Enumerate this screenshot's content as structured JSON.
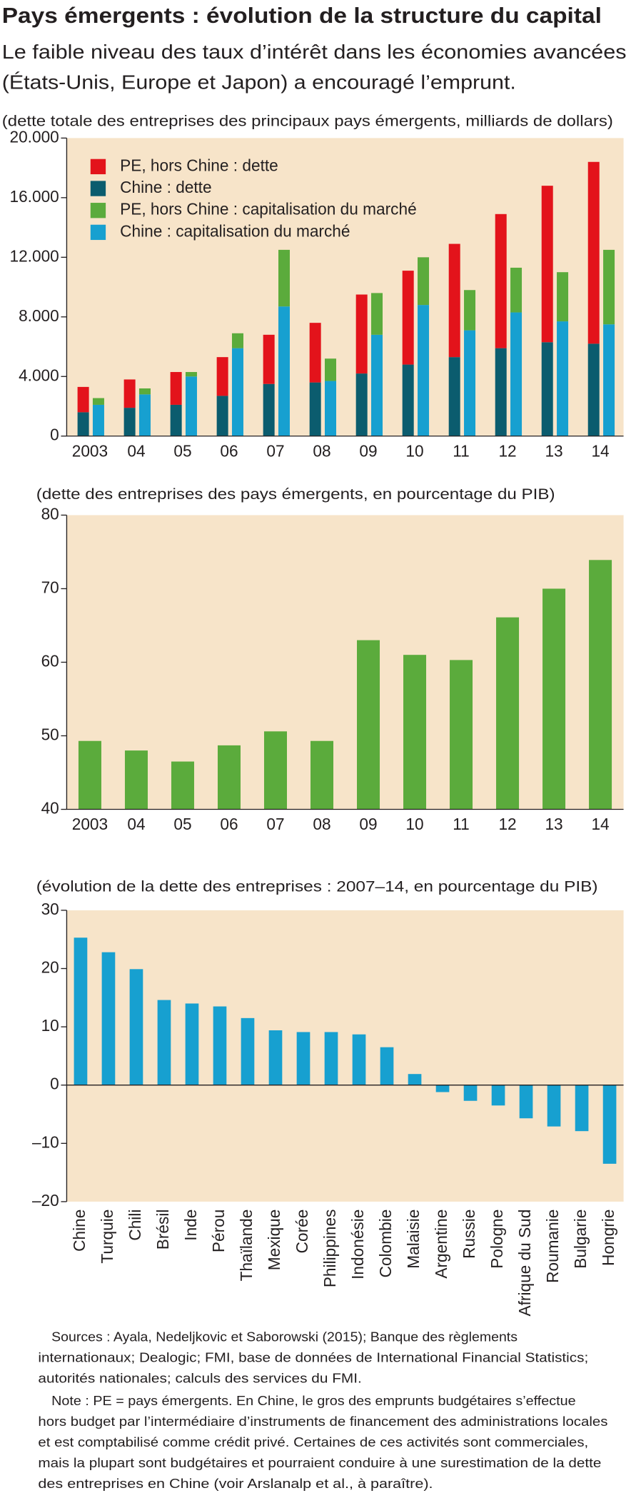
{
  "header": {
    "title": "Pays émergents : évolution de la structure du capital",
    "subtitle": [
      "Le faible niveau des taux d’intérêt dans les économies avancées",
      "(États-Unis, Europe et Japon) a encouragé l’emprunt."
    ]
  },
  "chart_data": [
    {
      "type": "bar",
      "subtitle": "(dette totale des entreprises des principaux pays émergents, milliards de dollars)",
      "categories": [
        "2003",
        "04",
        "05",
        "06",
        "07",
        "08",
        "09",
        "10",
        "11",
        "12",
        "13",
        "14"
      ],
      "series": [
        {
          "name": "PE, hors Chine : dette",
          "color": "#e3131b",
          "values": [
            1700,
            1900,
            2200,
            2600,
            3300,
            4000,
            5300,
            6300,
            7600,
            9000,
            10500,
            12200
          ]
        },
        {
          "name": "Chine : dette",
          "color": "#0b5c6e",
          "values": [
            1600,
            1900,
            2100,
            2700,
            3500,
            3600,
            4200,
            4800,
            5300,
            5900,
            6300,
            6200
          ]
        },
        {
          "name": "PE, hors Chine : capitalisation du marché",
          "color": "#5bab3c",
          "values": [
            450,
            400,
            300,
            1000,
            3800,
            1500,
            2800,
            3200,
            2700,
            3000,
            3300,
            5000
          ]
        },
        {
          "name": "Chine : capitalisation du marché",
          "color": "#17a0d0",
          "values": [
            2100,
            2800,
            4000,
            5900,
            8700,
            3700,
            6800,
            8800,
            7100,
            8300,
            7700,
            7500
          ]
        }
      ],
      "ylim": [
        0,
        20000
      ],
      "yticks": [
        0,
        {
          "value": 4000,
          "label": "4.000"
        },
        {
          "value": 8000,
          "label": "8.000"
        },
        {
          "value": 12000,
          "label": "12.000"
        },
        {
          "value": 16000,
          "label": "16.000"
        },
        {
          "value": 20000,
          "label": "20.000"
        }
      ],
      "legend": "top-left"
    },
    {
      "type": "bar",
      "subtitle": "(dette des entreprises des pays émergents, en pourcentage du PIB)",
      "categories": [
        "2003",
        "04",
        "05",
        "06",
        "07",
        "08",
        "09",
        "10",
        "11",
        "12",
        "13",
        "14"
      ],
      "values": [
        49.3,
        48,
        46.5,
        48.7,
        50.6,
        49.3,
        63,
        61,
        60.3,
        66.1,
        70,
        73.9
      ],
      "color": "#5bab3c",
      "ylim": [
        40,
        80
      ],
      "yticks": [
        40,
        50,
        60,
        70,
        80
      ]
    },
    {
      "type": "bar",
      "subtitle": "(évolution de la dette des entreprises : 2007–14, en pourcentage du PIB)",
      "categories": [
        "Chine",
        "Turquie",
        "Chili",
        "Brésil",
        "Inde",
        "Pérou",
        "Thaïlande",
        "Mexique",
        "Corée",
        "Philippines",
        "Indonésie",
        "Colombie",
        "Malaisie",
        "Argentine",
        "Russie",
        "Pologne",
        "Afrique du Sud",
        "Roumanie",
        "Bulgarie",
        "Hongrie"
      ],
      "values": [
        25.3,
        22.8,
        19.9,
        14.6,
        14,
        13.5,
        11.5,
        9.4,
        9.1,
        9.1,
        8.7,
        6.5,
        1.9,
        -1.2,
        -2.7,
        -3.5,
        -5.7,
        -7.1,
        -7.9,
        -13.5
      ],
      "color": "#17a0d0",
      "ylim": [
        -20,
        30
      ],
      "yticks": [
        {
          "value": -20,
          "label": "–20"
        },
        {
          "value": -10,
          "label": "–10"
        },
        0,
        10,
        20,
        30
      ]
    }
  ],
  "footer": {
    "sources": [
      "Sources : Ayala, Nedeljkovic et Saborowski (2015); Banque des règlements",
      "internationaux; Dealogic; FMI, base de données de International Financial Statistics;",
      "autorités nationales; calculs des services du FMI."
    ],
    "note": [
      "Note : PE = pays émergents. En Chine, le gros des emprunts budgétaires s’effectue",
      "hors budget par l’intermédiaire d’instruments de financement des administrations locales",
      "et est comptabilisé comme crédit privé. Certaines de ces activités sont commerciales,",
      "mais la plupart sont budgétaires et pourraient conduire à une surestimation de la dette",
      "des entreprises en Chine (voir Arslanalp et al., à paraître)."
    ]
  }
}
